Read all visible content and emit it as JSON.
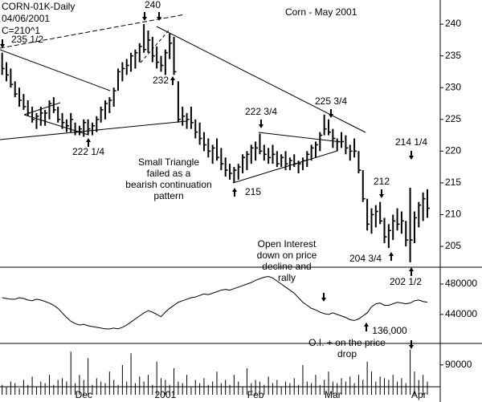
{
  "chart_data": [
    {
      "type": "ohlc",
      "header": [
        "CORN-01K-Daily",
        "04/06/2001",
        "C=210^1"
      ],
      "title": "Corn - May 2001",
      "xlim": [
        -0.5,
        100.5
      ],
      "ylim": [
        202,
        244
      ],
      "yticks": [
        205,
        210,
        215,
        220,
        225,
        230,
        235,
        240
      ],
      "color": "#000000",
      "high": [
        235.5,
        234,
        233,
        231,
        230,
        229,
        228,
        227,
        226,
        227,
        226.5,
        228,
        228.5,
        227,
        226,
        225,
        226,
        224.5,
        224,
        225,
        225,
        224.5,
        225.5,
        227,
        228,
        228.5,
        230,
        233,
        234,
        234.5,
        235.5,
        236,
        237,
        240,
        239,
        238,
        236.5,
        235,
        236,
        238.5,
        238,
        231,
        227,
        226,
        227,
        225,
        224.5,
        223,
        222,
        221,
        222,
        220.5,
        219,
        218,
        217.5,
        218,
        219.5,
        220,
        221,
        221.5,
        222.75,
        221,
        220.5,
        221,
        220,
        219.5,
        220,
        219,
        219.5,
        218.5,
        219,
        220,
        221,
        221.5,
        223,
        225.75,
        225,
        223.5,
        222,
        223,
        222.5,
        221,
        222,
        220,
        217,
        212.5,
        211,
        211.5,
        212,
        209.5,
        208.5,
        210,
        211,
        210.5,
        209,
        214.25,
        210.5,
        212,
        213.5,
        214
      ],
      "low": [
        232,
        231,
        230,
        228.5,
        227,
        226.5,
        225.5,
        224.5,
        223.5,
        224,
        224,
        225,
        226,
        224.5,
        223.5,
        223,
        223,
        222.5,
        222.5,
        222.25,
        222.5,
        222.5,
        223,
        224.5,
        225,
        226,
        227,
        229.5,
        231,
        232,
        232.5,
        233,
        234,
        235.5,
        235.5,
        234,
        233,
        232.5,
        232,
        234.5,
        232,
        224.5,
        224,
        223.5,
        223.5,
        222,
        221,
        220,
        219,
        218,
        218.5,
        217,
        216,
        215.5,
        215,
        215.5,
        216.5,
        217,
        218,
        218.5,
        219.5,
        218.5,
        218,
        218,
        217.5,
        217.5,
        217,
        217,
        217.5,
        216.5,
        217,
        217.5,
        218.5,
        219,
        220,
        222.5,
        222.5,
        220.5,
        220,
        220.5,
        219.5,
        218.5,
        219,
        216.5,
        212,
        207.5,
        207,
        208,
        208.5,
        205.5,
        204.75,
        206,
        207.5,
        207,
        205,
        202.5,
        205.5,
        208,
        209,
        209.5
      ],
      "close": [
        233,
        232,
        230.5,
        229,
        228,
        227,
        226,
        225,
        225.5,
        226,
        226,
        227.5,
        226.5,
        225,
        224.5,
        224,
        225,
        223,
        223.5,
        224.5,
        223.5,
        224,
        225,
        226.5,
        227.5,
        228,
        229.5,
        232.5,
        233,
        233.5,
        235,
        235.5,
        236.5,
        236,
        237.5,
        235,
        234,
        233.5,
        235.5,
        237,
        232.5,
        225,
        225.5,
        225,
        224.5,
        223,
        222,
        221,
        220,
        220.5,
        219,
        218,
        217,
        216.5,
        217,
        217.5,
        219,
        219.5,
        220.5,
        220.5,
        220,
        219.5,
        219,
        219.5,
        218,
        219,
        218,
        218.5,
        218,
        218,
        218.5,
        219.5,
        220.5,
        221,
        222.5,
        223.5,
        223,
        222,
        221.5,
        221.5,
        220.5,
        220,
        220,
        217,
        212.5,
        208.5,
        210,
        210.5,
        209,
        206.5,
        207.5,
        209,
        208.5,
        209,
        206,
        206,
        209.5,
        211.5,
        212.5,
        211
      ],
      "annotations": [
        {
          "text": [
            "235 1/2"
          ]
        },
        {
          "text": [
            "240"
          ]
        },
        {
          "text": [
            "232"
          ]
        },
        {
          "text": [
            "222 1/4"
          ]
        },
        {
          "text": [
            "222 3/4"
          ]
        },
        {
          "text": [
            "225 3/4"
          ]
        },
        {
          "text": [
            "215"
          ]
        },
        {
          "text": [
            "212"
          ]
        },
        {
          "text": [
            "214 1/4"
          ]
        },
        {
          "text": [
            "204 3/4"
          ]
        },
        {
          "text": [
            "202 1/2"
          ]
        },
        {
          "text": [
            "Small Triangle",
            "failed as a",
            "bearish continuation",
            "pattern"
          ]
        }
      ]
    },
    {
      "type": "line",
      "xlim": [
        -0.5,
        100.5
      ],
      "ylim": [
        406000,
        498000
      ],
      "yticks": [
        440000,
        480000
      ],
      "color": "#000000",
      "values": [
        462000,
        461000,
        460000,
        460000,
        462000,
        461000,
        459000,
        458000,
        460000,
        459000,
        457000,
        455000,
        452000,
        448000,
        442000,
        436000,
        431000,
        428000,
        426000,
        427000,
        425000,
        424000,
        423000,
        422000,
        421000,
        421000,
        422000,
        421000,
        423000,
        426000,
        430000,
        434000,
        438000,
        442000,
        445000,
        443000,
        440000,
        437000,
        443000,
        448000,
        452000,
        456000,
        458000,
        460000,
        462000,
        463000,
        465000,
        467000,
        466000,
        468000,
        470000,
        472000,
        473000,
        472000,
        474000,
        476000,
        478000,
        480000,
        482000,
        485000,
        487000,
        489000,
        490000,
        488000,
        484000,
        480000,
        476000,
        472000,
        468000,
        462000,
        456000,
        452000,
        448000,
        446000,
        443000,
        441000,
        440000,
        442000,
        440000,
        438000,
        436000,
        433000,
        432000,
        434000,
        438000,
        442000,
        450000,
        454000,
        455000,
        452000,
        452000,
        454000,
        456000,
        455000,
        454000,
        455000,
        458000,
        459000,
        457000,
        456000
      ],
      "annotations": [
        {
          "text": [
            "Open Interest",
            "down on price",
            "decline and",
            "rally"
          ]
        },
        {
          "text": [
            "O.I. + on the price",
            "drop"
          ]
        },
        {
          "text": [
            "136,000"
          ]
        }
      ]
    },
    {
      "type": "bar",
      "xlim": [
        -0.5,
        100.5
      ],
      "ylim": [
        0,
        150000
      ],
      "yticks": [
        90000
      ],
      "color": "#000000",
      "xticks": [
        {
          "value": 19,
          "label": "Dec"
        },
        {
          "value": 38,
          "label": "2001"
        },
        {
          "value": 59,
          "label": "Feb"
        },
        {
          "value": 77,
          "label": "Mar"
        },
        {
          "value": 97,
          "label": "Apr"
        }
      ],
      "values": [
        30000,
        25000,
        40000,
        35000,
        20000,
        45000,
        30000,
        55000,
        25000,
        40000,
        35000,
        60000,
        30000,
        45000,
        50000,
        40000,
        130000,
        35000,
        60000,
        45000,
        110000,
        30000,
        50000,
        40000,
        35000,
        70000,
        45000,
        30000,
        90000,
        40000,
        125000,
        35000,
        55000,
        40000,
        60000,
        30000,
        100000,
        50000,
        45000,
        30000,
        80000,
        40000,
        35000,
        60000,
        25000,
        45000,
        35000,
        50000,
        30000,
        40000,
        70000,
        35000,
        45000,
        30000,
        60000,
        40000,
        25000,
        80000,
        35000,
        45000,
        40000,
        30000,
        55000,
        35000,
        45000,
        25000,
        40000,
        35000,
        50000,
        30000,
        90000,
        40000,
        35000,
        60000,
        30000,
        45000,
        70000,
        40000,
        35000,
        50000,
        40000,
        55000,
        35000,
        60000,
        45000,
        100000,
        70000,
        40000,
        55000,
        50000,
        45000,
        60000,
        40000,
        50000,
        35000,
        136000,
        70000,
        45000,
        60000,
        40000
      ]
    }
  ]
}
